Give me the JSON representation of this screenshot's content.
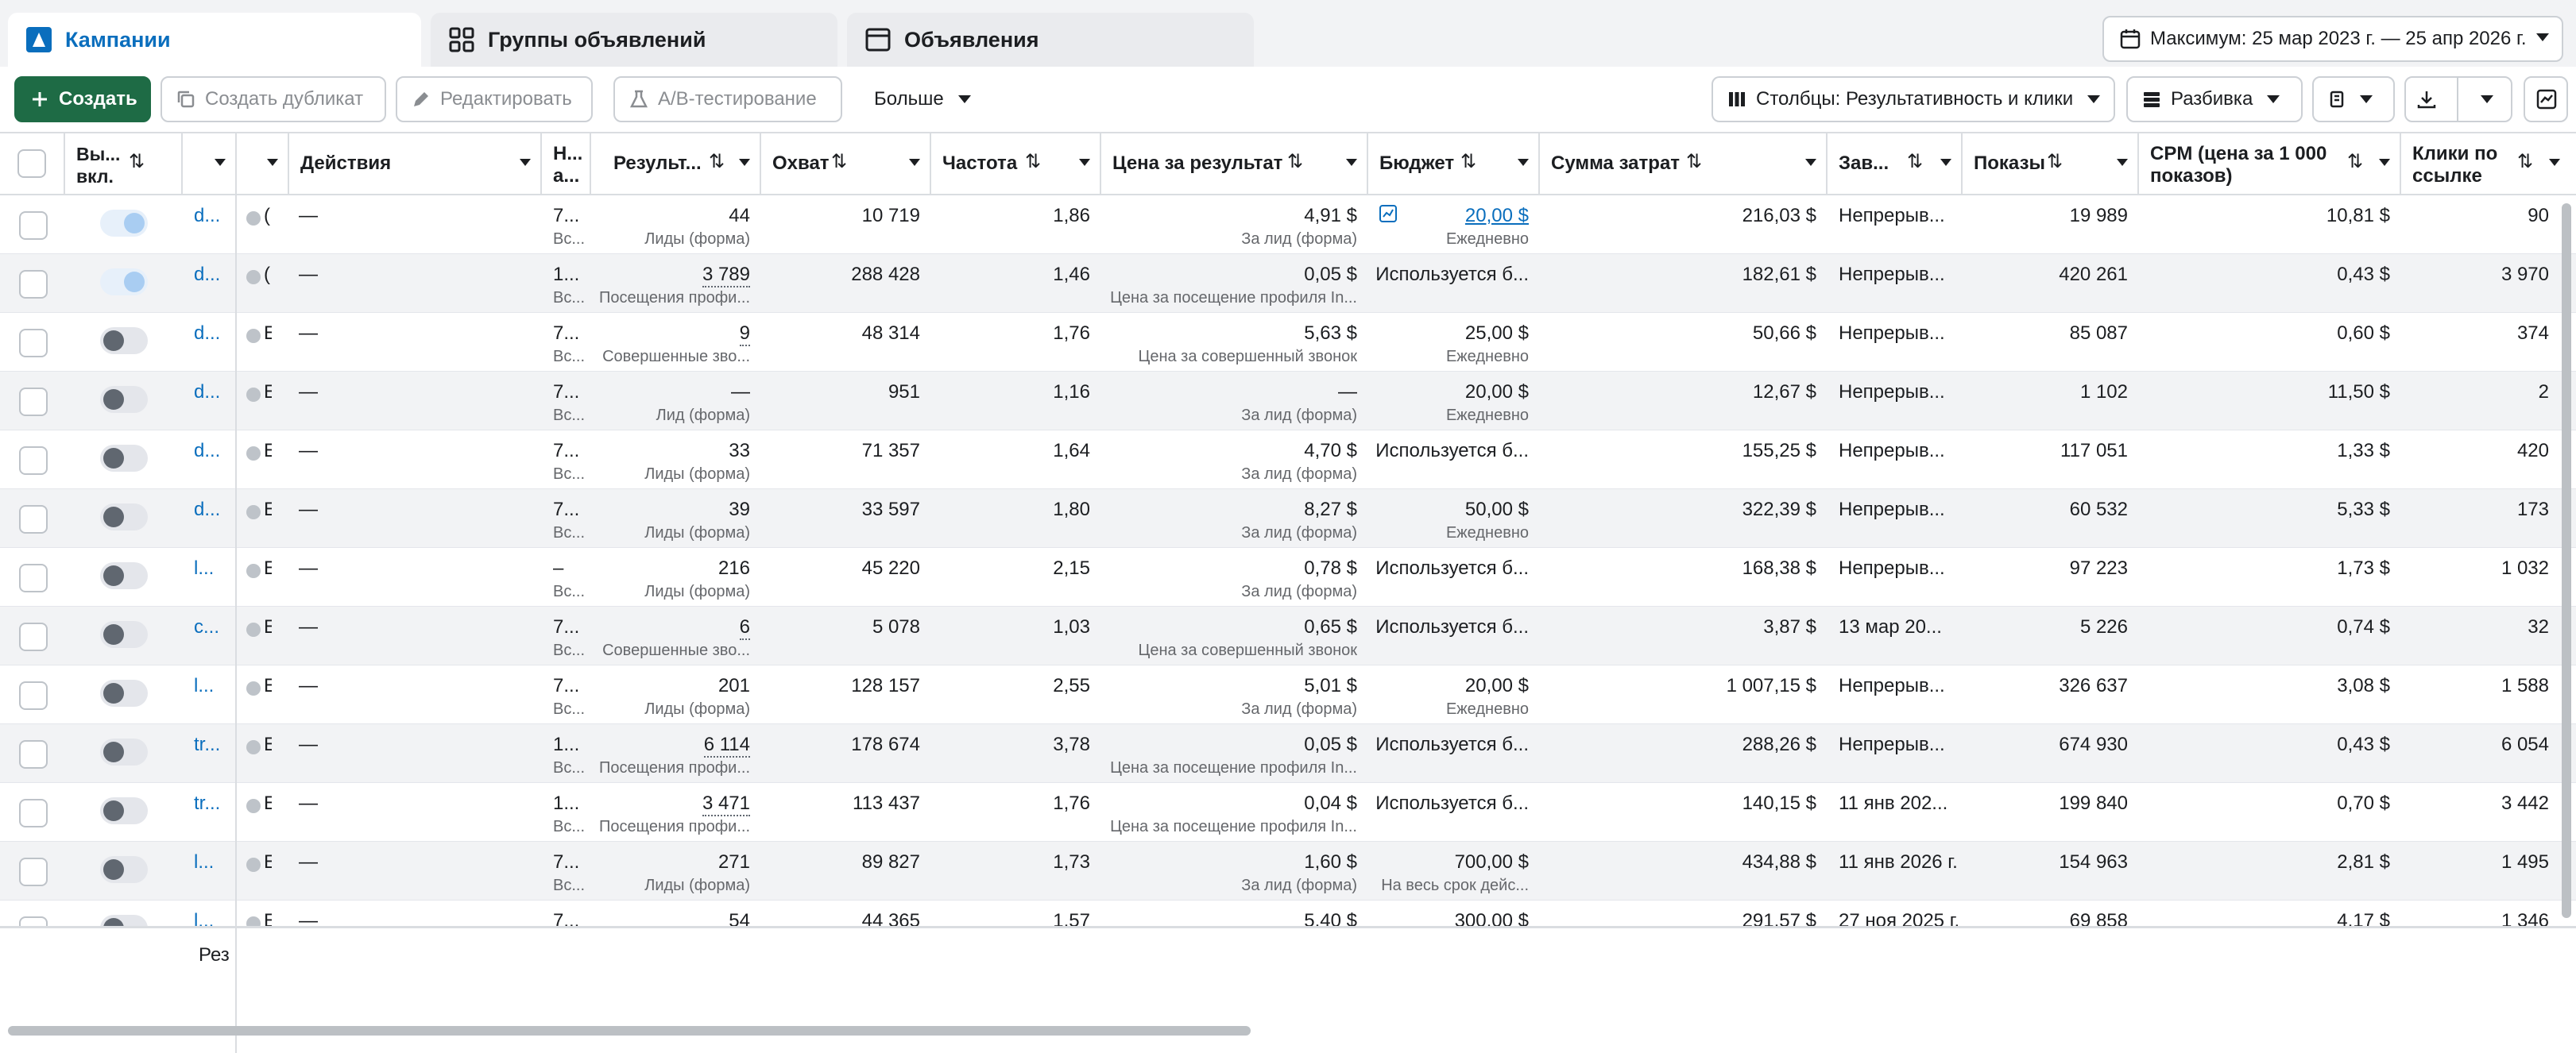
{
  "tabs": [
    {
      "label": "Кампании",
      "icon": "campaign-icon",
      "active": true
    },
    {
      "label": "Группы объявлений",
      "icon": "grid-icon",
      "active": false
    },
    {
      "label": "Объявления",
      "icon": "ad-window-icon",
      "active": false
    }
  ],
  "date_range": {
    "label": "Максимум: 25 мар 2023 г. — 25 апр 2026 г."
  },
  "toolbar": {
    "create": "Создать",
    "duplicate": "Создать дубликат",
    "edit": "Редактировать",
    "ab_test": "A/B-тестирование",
    "more": "Больше",
    "columns": "Столбцы: Результативность и клики",
    "breakdown": "Разбивка"
  },
  "columns": {
    "toggle": "Вы... вкл.",
    "actions": "Действия",
    "na": "Н... а...",
    "results": "Результ...",
    "reach": "Охват",
    "frequency": "Частота",
    "cost_per_result": "Цена за результат",
    "budget": "Бюджет",
    "spent": "Сумма затрат",
    "ends": "Зав...",
    "impressions": "Показы",
    "cpm": "CPM (цена за 1 000 показов)",
    "clicks": "Клики по ссылке"
  },
  "rows": [
    {
      "on": true,
      "name": "d...",
      "code": "(",
      "actions": "—",
      "na_main": "7...",
      "na_sub": "Вс...",
      "results": "44",
      "results_sub": "Лиды (форма)",
      "results_u": false,
      "reach": "10 719",
      "freq": "1,86",
      "cpr": "4,91 $",
      "cpr_sub": "За лид (форма)",
      "budget": "20,00 $",
      "budget_sub": "Ежедневно",
      "budget_link": true,
      "spent": "216,03 $",
      "ends": "Непрерыв...",
      "impr": "19 989",
      "cpm": "10,81 $",
      "clicks": "90"
    },
    {
      "on": true,
      "name": "d...",
      "code": "(",
      "actions": "—",
      "na_main": "1...",
      "na_sub": "Вс...",
      "results": "3 789",
      "results_sub": "Посещения профи...",
      "results_u": true,
      "reach": "288 428",
      "freq": "1,46",
      "cpr": "0,05 $",
      "cpr_sub": "Цена за посещение профиля In...",
      "budget": "Используется б...",
      "budget_sub": "",
      "budget_link": false,
      "spent": "182,61 $",
      "ends": "Непрерыв...",
      "impr": "420 261",
      "cpm": "0,43 $",
      "clicks": "3 970"
    },
    {
      "on": false,
      "name": "d...",
      "code": "E",
      "actions": "—",
      "na_main": "7...",
      "na_sub": "Вс...",
      "results": "9",
      "results_sub": "Совершенные зво...",
      "results_u": true,
      "reach": "48 314",
      "freq": "1,76",
      "cpr": "5,63 $",
      "cpr_sub": "Цена за совершенный звонок",
      "budget": "25,00 $",
      "budget_sub": "Ежедневно",
      "budget_link": false,
      "spent": "50,66 $",
      "ends": "Непрерыв...",
      "impr": "85 087",
      "cpm": "0,60 $",
      "clicks": "374"
    },
    {
      "on": false,
      "name": "d...",
      "code": "E",
      "actions": "—",
      "na_main": "7...",
      "na_sub": "Вс...",
      "results": "—",
      "results_sub": "Лид (форма)",
      "results_u": false,
      "reach": "951",
      "freq": "1,16",
      "cpr": "—",
      "cpr_sub": "За лид (форма)",
      "budget": "20,00 $",
      "budget_sub": "Ежедневно",
      "budget_link": false,
      "spent": "12,67 $",
      "ends": "Непрерыв...",
      "impr": "1 102",
      "cpm": "11,50 $",
      "clicks": "2"
    },
    {
      "on": false,
      "name": "d...",
      "code": "E",
      "actions": "—",
      "na_main": "7...",
      "na_sub": "Вс...",
      "results": "33",
      "results_sub": "Лиды (форма)",
      "results_u": false,
      "reach": "71 357",
      "freq": "1,64",
      "cpr": "4,70 $",
      "cpr_sub": "За лид (форма)",
      "budget": "Используется б...",
      "budget_sub": "",
      "budget_link": false,
      "spent": "155,25 $",
      "ends": "Непрерыв...",
      "impr": "117 051",
      "cpm": "1,33 $",
      "clicks": "420"
    },
    {
      "on": false,
      "name": "d...",
      "code": "E",
      "actions": "—",
      "na_main": "7...",
      "na_sub": "Вс...",
      "results": "39",
      "results_sub": "Лиды (форма)",
      "results_u": false,
      "reach": "33 597",
      "freq": "1,80",
      "cpr": "8,27 $",
      "cpr_sub": "За лид (форма)",
      "budget": "50,00 $",
      "budget_sub": "Ежедневно",
      "budget_link": false,
      "spent": "322,39 $",
      "ends": "Непрерыв...",
      "impr": "60 532",
      "cpm": "5,33 $",
      "clicks": "173"
    },
    {
      "on": false,
      "name": "l...",
      "code": "E",
      "actions": "—",
      "na_main": "–",
      "na_sub": "Вс...",
      "results": "216",
      "results_sub": "Лиды (форма)",
      "results_u": false,
      "reach": "45 220",
      "freq": "2,15",
      "cpr": "0,78 $",
      "cpr_sub": "За лид (форма)",
      "budget": "Используется б...",
      "budget_sub": "",
      "budget_link": false,
      "spent": "168,38 $",
      "ends": "Непрерыв...",
      "impr": "97 223",
      "cpm": "1,73 $",
      "clicks": "1 032"
    },
    {
      "on": false,
      "name": "c...",
      "code": "E",
      "actions": "—",
      "na_main": "7...",
      "na_sub": "Вс...",
      "results": "6",
      "results_sub": "Совершенные зво...",
      "results_u": true,
      "reach": "5 078",
      "freq": "1,03",
      "cpr": "0,65 $",
      "cpr_sub": "Цена за совершенный звонок",
      "budget": "Используется б...",
      "budget_sub": "",
      "budget_link": false,
      "spent": "3,87 $",
      "ends": "13 мар 20...",
      "impr": "5 226",
      "cpm": "0,74 $",
      "clicks": "32"
    },
    {
      "on": false,
      "name": "l...",
      "code": "E",
      "actions": "—",
      "na_main": "7...",
      "na_sub": "Вс...",
      "results": "201",
      "results_sub": "Лиды (форма)",
      "results_u": false,
      "reach": "128 157",
      "freq": "2,55",
      "cpr": "5,01 $",
      "cpr_sub": "За лид (форма)",
      "budget": "20,00 $",
      "budget_sub": "Ежедневно",
      "budget_link": false,
      "spent": "1 007,15 $",
      "ends": "Непрерыв...",
      "impr": "326 637",
      "cpm": "3,08 $",
      "clicks": "1 588"
    },
    {
      "on": false,
      "name": "tr...",
      "code": "E",
      "actions": "—",
      "na_main": "1...",
      "na_sub": "Вс...",
      "results": "6 114",
      "results_sub": "Посещения профи...",
      "results_u": true,
      "reach": "178 674",
      "freq": "3,78",
      "cpr": "0,05 $",
      "cpr_sub": "Цена за посещение профиля In...",
      "budget": "Используется б...",
      "budget_sub": "",
      "budget_link": false,
      "spent": "288,26 $",
      "ends": "Непрерыв...",
      "impr": "674 930",
      "cpm": "0,43 $",
      "clicks": "6 054"
    },
    {
      "on": false,
      "name": "tr...",
      "code": "E",
      "actions": "—",
      "na_main": "1...",
      "na_sub": "Вс...",
      "results": "3 471",
      "results_sub": "Посещения профи...",
      "results_u": true,
      "reach": "113 437",
      "freq": "1,76",
      "cpr": "0,04 $",
      "cpr_sub": "Цена за посещение профиля In...",
      "budget": "Используется б...",
      "budget_sub": "",
      "budget_link": false,
      "spent": "140,15 $",
      "ends": "11 янв 202...",
      "impr": "199 840",
      "cpm": "0,70 $",
      "clicks": "3 442"
    },
    {
      "on": false,
      "name": "l...",
      "code": "E",
      "actions": "—",
      "na_main": "7...",
      "na_sub": "Вс...",
      "results": "271",
      "results_sub": "Лиды (форма)",
      "results_u": false,
      "reach": "89 827",
      "freq": "1,73",
      "cpr": "1,60 $",
      "cpr_sub": "За лид (форма)",
      "budget": "700,00 $",
      "budget_sub": "На весь срок дейс...",
      "budget_link": false,
      "spent": "434,88 $",
      "ends": "11 янв 2026 г.",
      "impr": "154 963",
      "cpm": "2,81 $",
      "clicks": "1 495"
    },
    {
      "on": false,
      "name": "l...",
      "code": "E",
      "actions": "—",
      "na_main": "7...",
      "na_sub": "",
      "results": "54",
      "results_sub": "",
      "results_u": false,
      "reach": "44 365",
      "freq": "1,57",
      "cpr": "5,40 $",
      "cpr_sub": "",
      "budget": "300,00 $",
      "budget_sub": "",
      "budget_link": false,
      "spent": "291,57 $",
      "ends": "27 ноя 2025 г.",
      "impr": "69 858",
      "cpm": "4,17 $",
      "clicks": "1 346"
    }
  ],
  "footer": {
    "results_label": "Рез"
  },
  "colors": {
    "accent": "#0a6ebd",
    "primary_button": "#1e6b45",
    "border": "#dadde1",
    "alt_row": "#f2f3f5"
  }
}
